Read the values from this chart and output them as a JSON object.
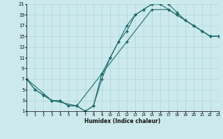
{
  "xlabel": "Humidex (Indice chaleur)",
  "background_color": "#cce9ec",
  "grid_color": "#a8d0d5",
  "line_color": "#1e6e6e",
  "xlim": [
    0,
    23
  ],
  "ylim": [
    1,
    21
  ],
  "xticks": [
    0,
    1,
    2,
    3,
    4,
    5,
    6,
    7,
    8,
    9,
    10,
    11,
    12,
    13,
    14,
    15,
    16,
    17,
    18,
    19,
    20,
    21,
    22,
    23
  ],
  "yticks": [
    1,
    3,
    5,
    7,
    9,
    11,
    13,
    15,
    17,
    19,
    21
  ],
  "curve1_x": [
    0,
    1,
    2,
    3,
    4,
    5,
    6,
    7,
    8,
    9,
    10,
    11,
    12,
    13,
    14,
    15,
    16,
    17,
    18,
    19,
    20,
    21,
    22,
    23
  ],
  "curve1_y": [
    7,
    5,
    4,
    3,
    3,
    2,
    2,
    1,
    2,
    7,
    11,
    14,
    16,
    19,
    20,
    21,
    21.5,
    21,
    19.5,
    18,
    17,
    16,
    15,
    15
  ],
  "curve2_x": [
    0,
    1,
    2,
    3,
    4,
    5,
    6,
    7,
    8,
    9,
    10,
    11,
    12,
    13,
    14,
    15,
    16,
    17,
    18,
    19,
    20,
    21,
    22,
    23
  ],
  "curve2_y": [
    7,
    5,
    4,
    3,
    3,
    2,
    2,
    1,
    2,
    8,
    11,
    14,
    17,
    19,
    20,
    21,
    21,
    20,
    19,
    18,
    17,
    16,
    15,
    15
  ],
  "curve3_x": [
    0,
    3,
    6,
    9,
    12,
    15,
    17,
    18,
    20,
    21,
    22,
    23
  ],
  "curve3_y": [
    7,
    3,
    2,
    8,
    14,
    20,
    20,
    19,
    17,
    16,
    15,
    15
  ],
  "marker_size": 2.2,
  "line_width": 0.8,
  "xlabel_fontsize": 5.5,
  "tick_fontsize_x": 4.0,
  "tick_fontsize_y": 4.8
}
